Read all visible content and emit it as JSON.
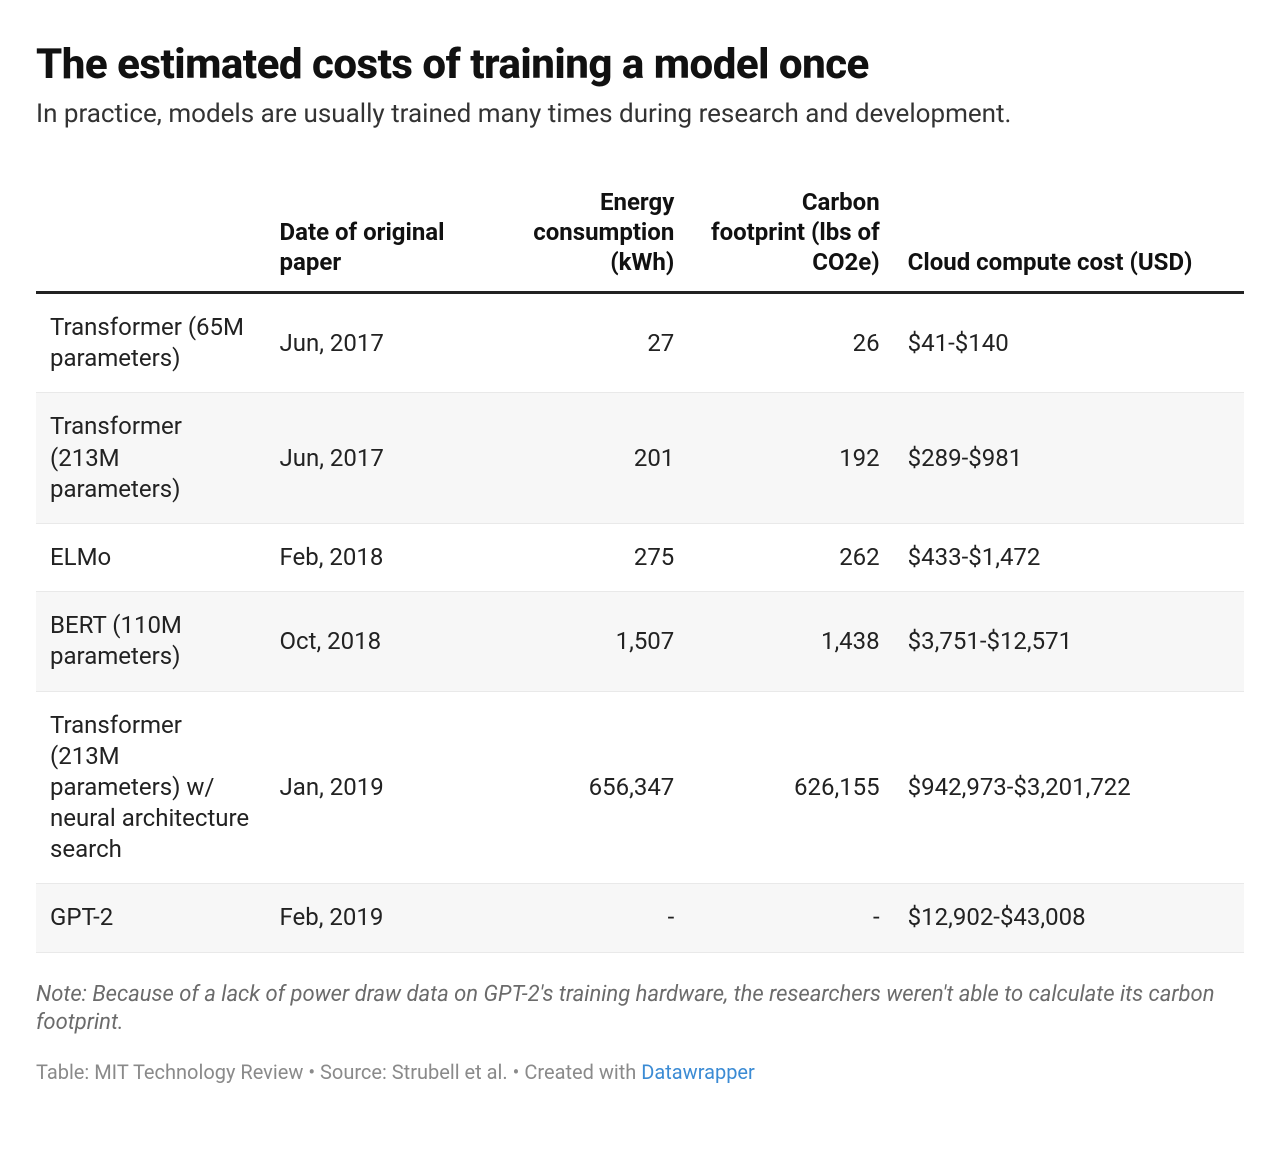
{
  "header": {
    "title": "The estimated costs of training a model once",
    "subtitle": "In practice, models are usually trained many times during research and development."
  },
  "table": {
    "type": "table",
    "background_color": "#ffffff",
    "stripe_color": "#f7f7f7",
    "header_border_color": "#222222",
    "row_border_color": "#e9e9e9",
    "text_color": "#222222",
    "header_fontsize": 24,
    "cell_fontsize": 24,
    "columns": [
      {
        "key": "model",
        "label": "",
        "align": "left",
        "width_pct": 19
      },
      {
        "key": "date",
        "label": "Date of original paper",
        "align": "left",
        "width_pct": 16
      },
      {
        "key": "energy",
        "label": "Energy consumption (kWh)",
        "align": "right",
        "width_pct": 19
      },
      {
        "key": "carbon",
        "label": "Carbon footprint (lbs of CO2e)",
        "align": "right",
        "width_pct": 17
      },
      {
        "key": "cost",
        "label": "Cloud compute cost (USD)",
        "align": "left",
        "width_pct": 29
      }
    ],
    "rows": [
      {
        "model": "Transformer (65M parameters)",
        "date": "Jun, 2017",
        "energy": "27",
        "carbon": "26",
        "cost": "$41-$140"
      },
      {
        "model": "Transformer (213M parameters)",
        "date": "Jun, 2017",
        "energy": "201",
        "carbon": "192",
        "cost": "$289-$981"
      },
      {
        "model": "ELMo",
        "date": "Feb, 2018",
        "energy": "275",
        "carbon": "262",
        "cost": "$433-$1,472"
      },
      {
        "model": "BERT (110M parameters)",
        "date": "Oct, 2018",
        "energy": "1,507",
        "carbon": "1,438",
        "cost": "$3,751-$12,571"
      },
      {
        "model": "Transformer (213M parameters) w/ neural architecture search",
        "date": "Jan, 2019",
        "energy": "656,347",
        "carbon": "626,155",
        "cost": "$942,973-$3,201,722"
      },
      {
        "model": "GPT-2",
        "date": "Feb, 2019",
        "energy": "-",
        "carbon": "-",
        "cost": "$12,902-$43,008"
      }
    ]
  },
  "footnote": "Note: Because of a lack of power draw data on GPT-2's training hardware, the researchers weren't able to calculate its carbon footprint.",
  "credits": {
    "prefix": "Table: MIT Technology Review • Source: Strubell et al. • Created with ",
    "link_text": "Datawrapper",
    "link_color": "#3b8bd4"
  }
}
